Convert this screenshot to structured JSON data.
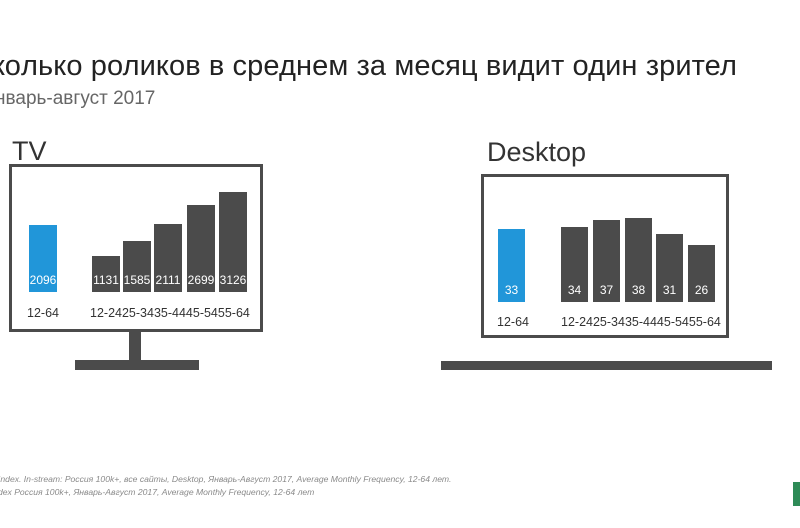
{
  "title": "кoлько роликов в среднем за месяц видит один зрител",
  "subtitle": "нварь-август 2017",
  "chart_data": [
    {
      "type": "bar",
      "title": "TV",
      "categories": [
        "12-64",
        "12-24",
        "25-34",
        "35-44",
        "45-54",
        "55-64"
      ],
      "total_label": "12-64",
      "segment_label": "12-2425-3435-4445-5455-64",
      "values": [
        2096,
        1131,
        1585,
        2111,
        2699,
        3126
      ],
      "value_labels": [
        "2096",
        "1131",
        "1585",
        "2111",
        "2699",
        "3126"
      ],
      "ylim": [
        0,
        3300
      ],
      "colors": [
        "#2196d9",
        "#4b4b4b",
        "#4b4b4b",
        "#4b4b4b",
        "#4b4b4b",
        "#4b4b4b"
      ]
    },
    {
      "type": "bar",
      "title": "Desktop",
      "categories": [
        "12-64",
        "12-24",
        "25-34",
        "35-44",
        "45-54",
        "55-64"
      ],
      "total_label": "12-64",
      "segment_label": "12-2425-3435-4445-5455-64",
      "values": [
        33,
        34,
        37,
        38,
        31,
        26
      ],
      "value_labels": [
        "33",
        "34",
        "37",
        "38",
        "31",
        "26"
      ],
      "ylim": [
        0,
        43
      ],
      "colors": [
        "#2196d9",
        "#4b4b4b",
        "#4b4b4b",
        "#4b4b4b",
        "#4b4b4b",
        "#4b4b4b"
      ]
    }
  ],
  "footnotes": [
    "Index. In-stream: Россия 100k+, все сайты, Desktop, Январь-Август 2017, Average Monthly Frequency, 12-64 лет.",
    "dex Россия 100k+, Январь-Август 2017, Average Monthly Frequency, 12-64 лет"
  ],
  "colors": {
    "accent": "#2196d9",
    "dark": "#4b4b4b",
    "brand_green": "#2e8b57"
  }
}
